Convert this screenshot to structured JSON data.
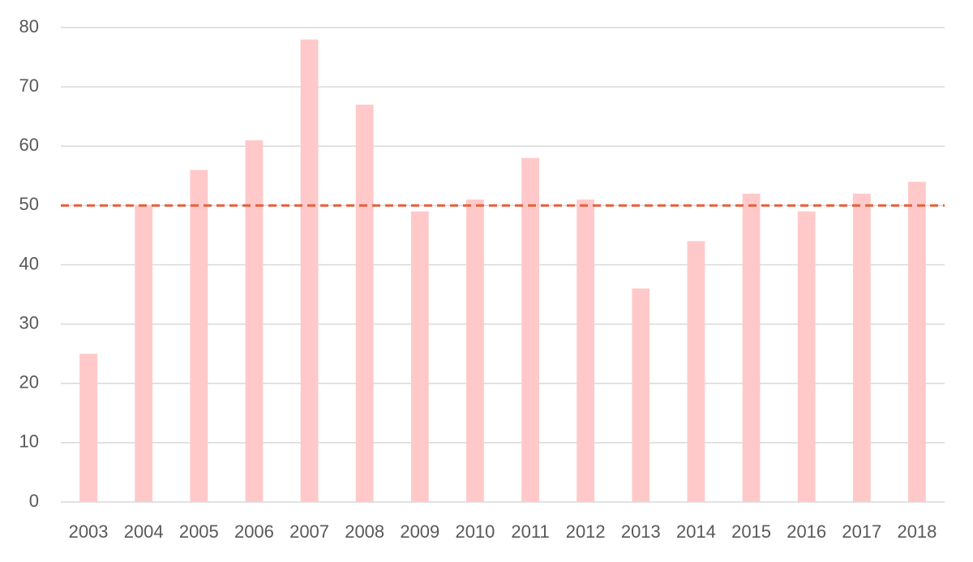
{
  "chart_data": {
    "type": "bar",
    "categories": [
      "2003",
      "2004",
      "2005",
      "2006",
      "2007",
      "2008",
      "2009",
      "2010",
      "2011",
      "2012",
      "2013",
      "2014",
      "2015",
      "2016",
      "2017",
      "2018"
    ],
    "values": [
      25,
      50,
      56,
      61,
      78,
      67,
      49,
      51,
      58,
      51,
      36,
      44,
      52,
      49,
      52,
      54
    ],
    "color": "#ffc9c9",
    "ylim": [
      0,
      80
    ],
    "yticks": [
      0,
      10,
      20,
      30,
      40,
      50,
      60,
      70,
      80
    ],
    "grid": true,
    "reference_line": {
      "value": 50,
      "color": "#e8603c",
      "style": "dashed"
    }
  }
}
